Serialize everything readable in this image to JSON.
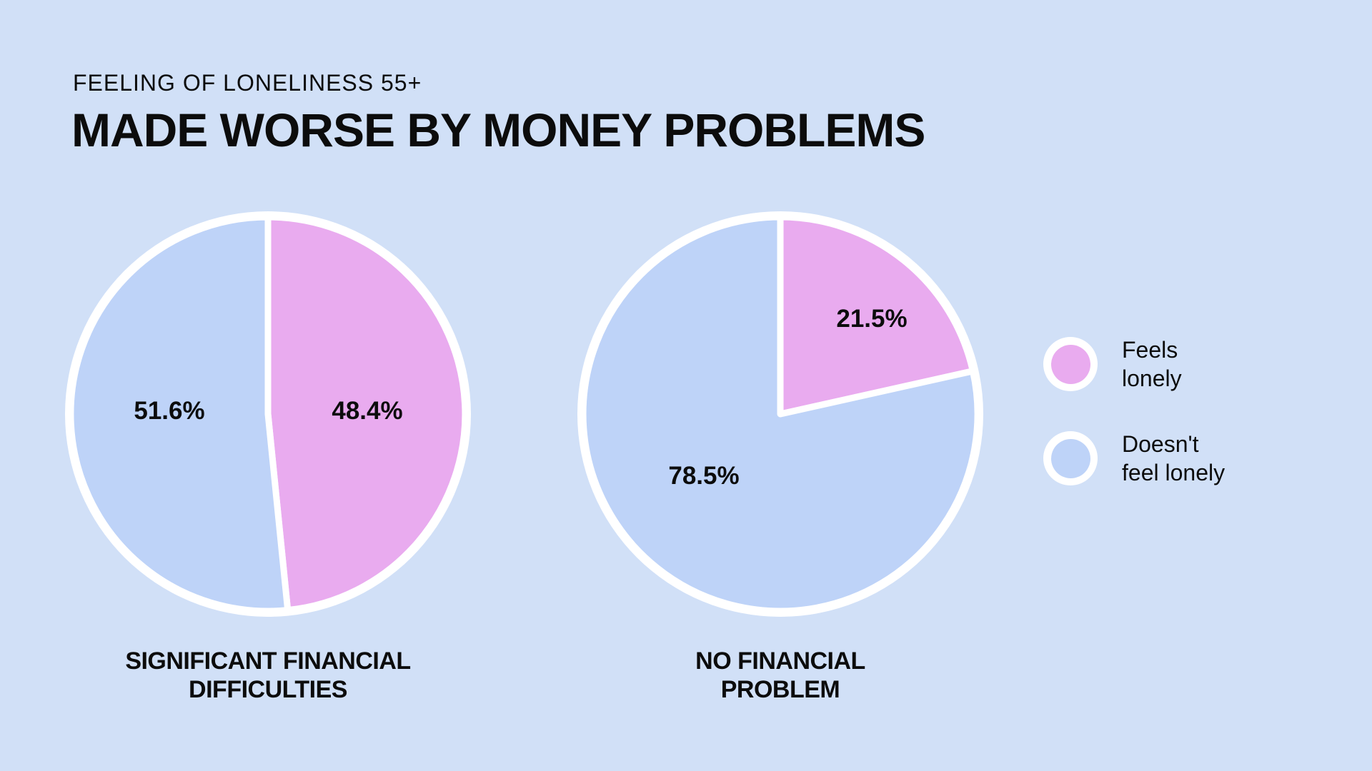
{
  "background": "#d1e0f7",
  "colors": {
    "pink": "#e9abef",
    "blue": "#bed3f8",
    "white": "#ffffff",
    "text": "#0c0c0c"
  },
  "header": {
    "subtitle": "FEELING OF LONELINESS 55+",
    "title": "MADE WORSE BY MONEY PROBLEMS"
  },
  "legend": {
    "position": "right",
    "items": [
      {
        "label": "Feels\nlonely",
        "color_key": "pink"
      },
      {
        "label": "Doesn't\nfeel lonely",
        "color_key": "blue"
      }
    ]
  },
  "chart_data": [
    {
      "type": "pie",
      "title": "SIGNIFICANT FINANCIAL\nDIFFICULTIES",
      "start_angle_deg": 0,
      "clockwise": true,
      "slices": [
        {
          "label": "Feels lonely",
          "value": 48.4,
          "display": "48.4%",
          "color_key": "pink",
          "label_pos": [
            439,
            295
          ]
        },
        {
          "label": "Doesn't feel lonely",
          "value": 51.6,
          "display": "51.6%",
          "color_key": "blue",
          "label_pos": [
            162,
            295
          ]
        }
      ]
    },
    {
      "type": "pie",
      "title": "NO FINANCIAL\nPROBLEM",
      "start_angle_deg": 0,
      "clockwise": true,
      "slices": [
        {
          "label": "Feels lonely",
          "value": 21.5,
          "display": "21.5%",
          "color_key": "pink",
          "label_pos": [
            428,
            166
          ]
        },
        {
          "label": "Doesn't feel lonely",
          "value": 78.5,
          "display": "78.5%",
          "color_key": "blue",
          "label_pos": [
            193,
            386
          ]
        }
      ]
    }
  ]
}
